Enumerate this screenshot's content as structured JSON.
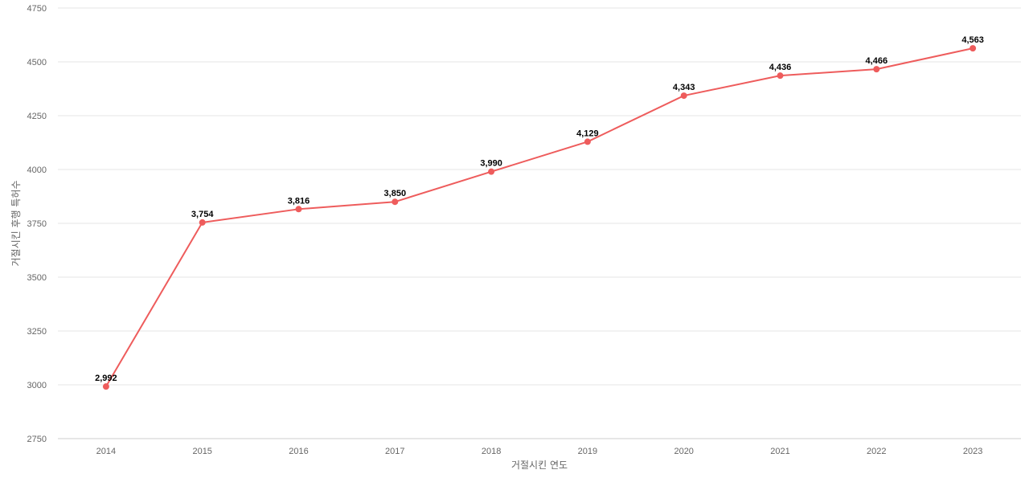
{
  "chart_data": {
    "type": "line",
    "title": "",
    "xlabel": "거절시킨 연도",
    "ylabel": "거절시킨 후행 특허수",
    "categories": [
      "2014",
      "2015",
      "2016",
      "2017",
      "2018",
      "2019",
      "2020",
      "2021",
      "2022",
      "2023"
    ],
    "series": [
      {
        "values": [
          2992,
          3754,
          3816,
          3850,
          3990,
          4129,
          4343,
          4436,
          4466,
          4563
        ],
        "data_labels": [
          "2,992",
          "3,754",
          "3,816",
          "3,850",
          "3,990",
          "4,129",
          "4,343",
          "4,436",
          "4,466",
          "4,563"
        ],
        "color": "#ee5c5c"
      }
    ],
    "ylim": [
      2750,
      4750
    ],
    "yticks": [
      "2750",
      "3000",
      "3250",
      "3500",
      "3750",
      "4000",
      "4250",
      "4500",
      "4750"
    ],
    "grid": true,
    "legend": "none"
  }
}
